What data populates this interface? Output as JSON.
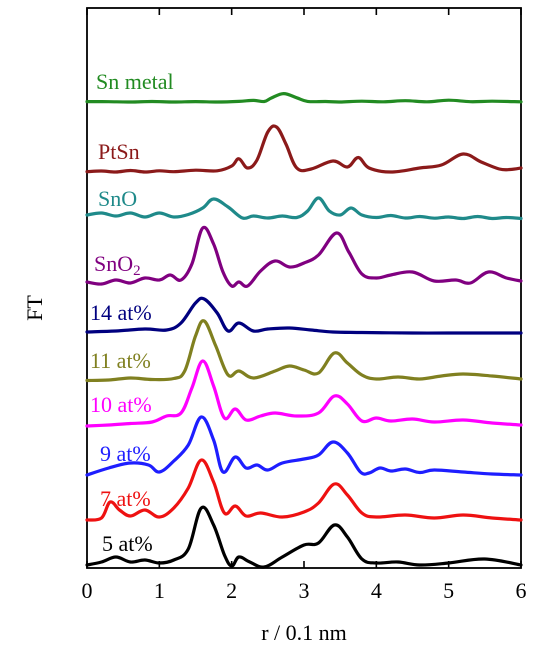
{
  "chart_data": {
    "type": "line",
    "xlabel": "r / 0.1 nm",
    "ylabel": "FT",
    "xlim": [
      0,
      6
    ],
    "x_ticks": [
      "0",
      "1",
      "2",
      "3",
      "4",
      "5",
      "6"
    ],
    "y_ticks_labeled": false,
    "grid": false,
    "legend": "inline labels beside each curve",
    "series": [
      {
        "name": "Sn metal",
        "label_main": "Sn metal",
        "label_sub": "",
        "color": "#228B22",
        "baseline": 102,
        "points": [
          [
            0,
            0.4
          ],
          [
            0.3,
            0.3
          ],
          [
            0.6,
            0
          ],
          [
            0.9,
            0.5
          ],
          [
            1.2,
            0
          ],
          [
            1.5,
            0.4
          ],
          [
            1.8,
            0
          ],
          [
            2.1,
            0.6
          ],
          [
            2.3,
            1.6
          ],
          [
            2.45,
            0.5
          ],
          [
            2.55,
            4.0
          ],
          [
            2.72,
            8.4
          ],
          [
            2.9,
            4.2
          ],
          [
            3.05,
            0.6
          ],
          [
            3.3,
            0.5
          ],
          [
            3.5,
            0
          ],
          [
            3.8,
            0.8
          ],
          [
            4.1,
            0.2
          ],
          [
            4.4,
            1.3
          ],
          [
            4.7,
            0.2
          ],
          [
            5.0,
            1.8
          ],
          [
            5.3,
            0.3
          ],
          [
            5.6,
            0.8
          ],
          [
            6,
            0.2
          ]
        ]
      },
      {
        "name": "PtSn",
        "label_main": "PtSn",
        "label_sub": "",
        "color": "#8B1A1A",
        "baseline": 172,
        "points": [
          [
            0,
            0.3
          ],
          [
            0.2,
            1.0
          ],
          [
            0.4,
            0
          ],
          [
            0.6,
            1.5
          ],
          [
            0.8,
            0
          ],
          [
            1.0,
            1.2
          ],
          [
            1.2,
            0.3
          ],
          [
            1.5,
            1.8
          ],
          [
            1.8,
            1.2
          ],
          [
            2.0,
            6.0
          ],
          [
            2.1,
            13.2
          ],
          [
            2.22,
            4.0
          ],
          [
            2.35,
            12.0
          ],
          [
            2.5,
            40.0
          ],
          [
            2.62,
            45.0
          ],
          [
            2.75,
            28.0
          ],
          [
            2.9,
            4.0
          ],
          [
            3.1,
            3.0
          ],
          [
            3.4,
            11.0
          ],
          [
            3.6,
            5.0
          ],
          [
            3.75,
            14.5
          ],
          [
            3.9,
            4.0
          ],
          [
            4.2,
            0
          ],
          [
            4.6,
            4.0
          ],
          [
            4.9,
            7.0
          ],
          [
            5.2,
            18.0
          ],
          [
            5.45,
            10.0
          ],
          [
            5.7,
            3.0
          ],
          [
            5.85,
            2.5
          ],
          [
            6,
            4.0
          ]
        ]
      },
      {
        "name": "SnO",
        "label_main": "SnO",
        "label_sub": "",
        "color": "#1F8A8A",
        "baseline": 219,
        "points": [
          [
            0,
            4.0
          ],
          [
            0.2,
            6.0
          ],
          [
            0.4,
            3.0
          ],
          [
            0.6,
            6.0
          ],
          [
            0.8,
            2.0
          ],
          [
            1.0,
            6.0
          ],
          [
            1.2,
            2.0
          ],
          [
            1.4,
            4.5
          ],
          [
            1.6,
            11.0
          ],
          [
            1.75,
            20.0
          ],
          [
            1.95,
            12.0
          ],
          [
            2.15,
            1.0
          ],
          [
            2.3,
            3.0
          ],
          [
            2.5,
            1.0
          ],
          [
            2.7,
            3.0
          ],
          [
            2.9,
            1.5
          ],
          [
            3.05,
            8.0
          ],
          [
            3.2,
            21.0
          ],
          [
            3.35,
            8.0
          ],
          [
            3.5,
            4.0
          ],
          [
            3.65,
            11.0
          ],
          [
            3.8,
            4.0
          ],
          [
            4.0,
            1.5
          ],
          [
            4.2,
            3.5
          ],
          [
            4.4,
            1.0
          ],
          [
            4.6,
            2.5
          ],
          [
            4.8,
            0.8
          ],
          [
            5.0,
            2.0
          ],
          [
            5.2,
            0.5
          ],
          [
            5.4,
            2.5
          ],
          [
            5.6,
            0.5
          ],
          [
            5.8,
            1.5
          ],
          [
            6,
            0.5
          ]
        ]
      },
      {
        "name": "SnO2",
        "label_main": "SnO",
        "label_sub": "2",
        "color": "#800080",
        "baseline": 284,
        "points": [
          [
            0,
            2.0
          ],
          [
            0.2,
            0
          ],
          [
            0.4,
            4.0
          ],
          [
            0.6,
            1.0
          ],
          [
            0.8,
            6.0
          ],
          [
            1.0,
            4.0
          ],
          [
            1.15,
            9.0
          ],
          [
            1.3,
            4.0
          ],
          [
            1.45,
            20.0
          ],
          [
            1.6,
            56.0
          ],
          [
            1.75,
            40.0
          ],
          [
            1.88,
            12.0
          ],
          [
            2.0,
            -2.0
          ],
          [
            2.1,
            2.0
          ],
          [
            2.22,
            -2.0
          ],
          [
            2.4,
            13.0
          ],
          [
            2.6,
            23.0
          ],
          [
            2.8,
            17.0
          ],
          [
            3.0,
            21.0
          ],
          [
            3.2,
            29.0
          ],
          [
            3.45,
            51.0
          ],
          [
            3.62,
            32.0
          ],
          [
            3.8,
            10.0
          ],
          [
            4.0,
            6.0
          ],
          [
            4.2,
            9.0
          ],
          [
            4.5,
            12.0
          ],
          [
            4.8,
            3.0
          ],
          [
            5.1,
            4.0
          ],
          [
            5.3,
            1.0
          ],
          [
            5.55,
            12.0
          ],
          [
            5.8,
            6.0
          ],
          [
            6,
            3.0
          ]
        ]
      },
      {
        "name": "14 at%",
        "label_main": "14 at%",
        "label_sub": "",
        "color": "#00007F",
        "baseline": 333,
        "points": [
          [
            0,
            1.0
          ],
          [
            0.4,
            2.0
          ],
          [
            0.8,
            4.0
          ],
          [
            1.1,
            3.0
          ],
          [
            1.3,
            10.0
          ],
          [
            1.5,
            30.0
          ],
          [
            1.62,
            34.0
          ],
          [
            1.8,
            20.0
          ],
          [
            1.95,
            2.0
          ],
          [
            2.1,
            10.0
          ],
          [
            2.3,
            2.0
          ],
          [
            2.5,
            4.0
          ],
          [
            2.8,
            5.0
          ],
          [
            3.1,
            3.0
          ],
          [
            3.4,
            1.0
          ],
          [
            3.8,
            0.5
          ],
          [
            4.5,
            0
          ],
          [
            5.0,
            0
          ],
          [
            6,
            0
          ]
        ]
      },
      {
        "name": "11 at%",
        "label_main": "11 at%",
        "label_sub": "",
        "color": "#808020",
        "baseline": 381,
        "points": [
          [
            0,
            0.5
          ],
          [
            0.3,
            1.0
          ],
          [
            0.6,
            3.0
          ],
          [
            0.9,
            1.5
          ],
          [
            1.2,
            2.5
          ],
          [
            1.35,
            10.0
          ],
          [
            1.5,
            45.0
          ],
          [
            1.62,
            60.0
          ],
          [
            1.78,
            35.0
          ],
          [
            1.95,
            6.0
          ],
          [
            2.1,
            10.0
          ],
          [
            2.3,
            3.0
          ],
          [
            2.6,
            10.0
          ],
          [
            2.8,
            15.0
          ],
          [
            3.0,
            11.0
          ],
          [
            3.2,
            8.0
          ],
          [
            3.42,
            28.0
          ],
          [
            3.6,
            18.0
          ],
          [
            3.8,
            6.0
          ],
          [
            4.0,
            2.0
          ],
          [
            4.3,
            4.0
          ],
          [
            4.6,
            2.0
          ],
          [
            4.9,
            5.0
          ],
          [
            5.2,
            7.0
          ],
          [
            5.6,
            5.0
          ],
          [
            6,
            2.0
          ]
        ]
      },
      {
        "name": "10 at%",
        "label_main": "10 at%",
        "label_sub": "",
        "color": "#FF00FF",
        "baseline": 426,
        "points": [
          [
            0,
            0
          ],
          [
            0.3,
            1.0
          ],
          [
            0.6,
            2.5
          ],
          [
            0.9,
            4.0
          ],
          [
            1.1,
            10.0
          ],
          [
            1.3,
            13.0
          ],
          [
            1.45,
            38.0
          ],
          [
            1.6,
            65.0
          ],
          [
            1.75,
            40.0
          ],
          [
            1.9,
            8.0
          ],
          [
            2.05,
            17.0
          ],
          [
            2.2,
            6.0
          ],
          [
            2.4,
            10.0
          ],
          [
            2.6,
            13.0
          ],
          [
            2.9,
            10.0
          ],
          [
            3.2,
            13.0
          ],
          [
            3.42,
            30.0
          ],
          [
            3.6,
            22.0
          ],
          [
            3.8,
            5.0
          ],
          [
            4.0,
            8.0
          ],
          [
            4.2,
            5.0
          ],
          [
            4.5,
            7.0
          ],
          [
            4.8,
            4.0
          ],
          [
            5.2,
            6.0
          ],
          [
            5.6,
            3.0
          ],
          [
            6,
            1.0
          ]
        ]
      },
      {
        "name": "9 at%",
        "label_main": "9 at%",
        "label_sub": "",
        "color": "#1E1EFF",
        "baseline": 475,
        "points": [
          [
            0,
            0
          ],
          [
            0.3,
            7.0
          ],
          [
            0.6,
            12.0
          ],
          [
            0.85,
            10.0
          ],
          [
            1.0,
            3.0
          ],
          [
            1.2,
            14.0
          ],
          [
            1.4,
            30.0
          ],
          [
            1.58,
            58.0
          ],
          [
            1.75,
            35.0
          ],
          [
            1.88,
            3.0
          ],
          [
            2.05,
            18.0
          ],
          [
            2.2,
            7.0
          ],
          [
            2.35,
            10.0
          ],
          [
            2.5,
            5.0
          ],
          [
            2.7,
            12.0
          ],
          [
            3.0,
            16.0
          ],
          [
            3.2,
            20.0
          ],
          [
            3.4,
            33.0
          ],
          [
            3.6,
            22.0
          ],
          [
            3.78,
            3.0
          ],
          [
            3.9,
            2.0
          ],
          [
            4.05,
            7.0
          ],
          [
            4.2,
            4.0
          ],
          [
            4.4,
            6.0
          ],
          [
            4.6,
            2.5
          ],
          [
            4.8,
            5.0
          ],
          [
            5.2,
            3.0
          ],
          [
            5.6,
            1.0
          ],
          [
            6,
            0
          ]
        ]
      },
      {
        "name": "7 at%",
        "label_main": "7 at%",
        "label_sub": "",
        "color": "#EE1111",
        "baseline": 520,
        "points": [
          [
            0,
            0
          ],
          [
            0.2,
            2.0
          ],
          [
            0.32,
            18.0
          ],
          [
            0.45,
            10.0
          ],
          [
            0.6,
            4.0
          ],
          [
            0.8,
            10.0
          ],
          [
            1.0,
            3.0
          ],
          [
            1.2,
            12.0
          ],
          [
            1.4,
            32.0
          ],
          [
            1.58,
            60.0
          ],
          [
            1.75,
            38.0
          ],
          [
            1.9,
            7.0
          ],
          [
            2.05,
            14.0
          ],
          [
            2.2,
            4.0
          ],
          [
            2.4,
            7.0
          ],
          [
            2.7,
            3.0
          ],
          [
            3.0,
            8.0
          ],
          [
            3.2,
            17.0
          ],
          [
            3.42,
            36.0
          ],
          [
            3.6,
            25.0
          ],
          [
            3.8,
            7.0
          ],
          [
            4.0,
            3.0
          ],
          [
            4.4,
            5.0
          ],
          [
            4.8,
            2.0
          ],
          [
            5.2,
            5.0
          ],
          [
            5.6,
            2.0
          ],
          [
            6,
            0
          ]
        ]
      },
      {
        "name": "5 at%",
        "label_main": "5 at%",
        "label_sub": "",
        "color": "#000000",
        "baseline": 565,
        "points": [
          [
            0,
            0
          ],
          [
            0.2,
            3.0
          ],
          [
            0.4,
            8.0
          ],
          [
            0.6,
            3.0
          ],
          [
            0.8,
            5.0
          ],
          [
            1.0,
            2.0
          ],
          [
            1.2,
            5.0
          ],
          [
            1.4,
            16.0
          ],
          [
            1.58,
            57.0
          ],
          [
            1.75,
            40.0
          ],
          [
            1.9,
            10.0
          ],
          [
            2.0,
            -1.0
          ],
          [
            2.1,
            8.0
          ],
          [
            2.25,
            3.0
          ],
          [
            2.45,
            -2.0
          ],
          [
            2.7,
            8.0
          ],
          [
            3.0,
            20.0
          ],
          [
            3.2,
            22.0
          ],
          [
            3.42,
            40.0
          ],
          [
            3.6,
            28.0
          ],
          [
            3.8,
            6.0
          ],
          [
            4.0,
            2.0
          ],
          [
            4.3,
            3.0
          ],
          [
            4.6,
            0
          ],
          [
            5.0,
            2.0
          ],
          [
            5.5,
            6.0
          ],
          [
            6,
            0
          ]
        ]
      }
    ]
  }
}
